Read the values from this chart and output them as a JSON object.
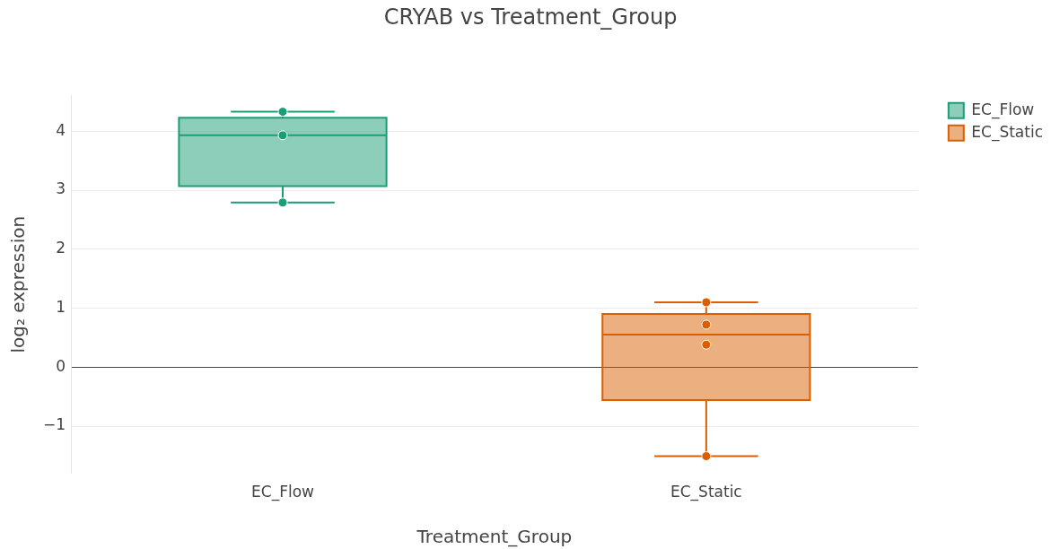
{
  "chart_data": {
    "type": "box",
    "title": "CRYAB vs Treatment_Group",
    "xlabel": "Treatment_Group",
    "ylabel": "log₂ expression",
    "categories": [
      "EC_Flow",
      "EC_Static"
    ],
    "series": [
      {
        "name": "EC_Flow",
        "color": "#1b9e77",
        "boxes": [
          {
            "low": 2.79,
            "q1": 3.07,
            "median": 3.93,
            "q3": 4.23,
            "high": 4.33
          },
          null
        ]
      },
      {
        "name": "EC_Static",
        "color": "#d95f02",
        "boxes": [
          null,
          {
            "low": -1.51,
            "q1": -0.56,
            "median": 0.55,
            "q3": 0.9,
            "high": 1.1
          }
        ]
      },
      {
        "type": "scatter",
        "color": "#1b9e77",
        "x": [
          "EC_Flow",
          "EC_Flow",
          "EC_Flow"
        ],
        "values": [
          4.33,
          3.93,
          2.79
        ]
      },
      {
        "type": "scatter",
        "color": "#d95f02",
        "x": [
          "EC_Static",
          "EC_Static",
          "EC_Static",
          "EC_Static"
        ],
        "values": [
          1.1,
          0.72,
          0.38,
          -1.51
        ]
      }
    ],
    "ylim": [
      -1.8,
      4.6
    ],
    "yticks": [
      -1,
      0,
      1,
      2,
      3,
      4
    ],
    "grid": "y",
    "legend": "top right",
    "marker": "circle"
  }
}
